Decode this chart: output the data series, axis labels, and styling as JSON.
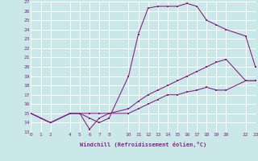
{
  "xlabel": "Windchill (Refroidissement éolien,°C)",
  "bg_color": "#cbe8e8",
  "grid_color": "#ffffff",
  "line_color": "#882288",
  "line1_x": [
    0,
    1,
    2,
    4,
    5,
    6,
    7,
    8,
    10,
    11,
    12,
    13,
    14,
    15,
    16,
    17,
    18,
    19,
    20,
    22,
    23
  ],
  "line1_y": [
    15,
    14.5,
    14,
    15,
    15,
    14.5,
    14,
    14.5,
    19,
    23.5,
    26.3,
    26.5,
    26.5,
    26.5,
    26.8,
    26.5,
    25,
    24.5,
    24,
    23.3,
    20
  ],
  "line2_x": [
    0,
    1,
    2,
    4,
    5,
    6,
    7,
    8,
    10,
    11,
    12,
    13,
    14,
    15,
    16,
    17,
    18,
    19,
    20,
    22,
    23
  ],
  "line2_y": [
    15,
    14.5,
    14,
    15,
    15,
    15,
    15,
    15,
    15.5,
    16.3,
    17,
    17.5,
    18,
    18.5,
    19,
    19.5,
    20,
    20.5,
    20.8,
    18.5,
    18.5
  ],
  "line3_x": [
    0,
    1,
    2,
    4,
    5,
    6,
    7,
    8,
    10,
    11,
    12,
    13,
    14,
    15,
    16,
    17,
    18,
    19,
    20,
    22,
    23
  ],
  "line3_y": [
    15,
    14.5,
    14,
    15,
    15,
    13.3,
    14.5,
    15,
    15,
    15.5,
    16,
    16.5,
    17,
    17,
    17.3,
    17.5,
    17.8,
    17.5,
    17.5,
    18.5,
    18.5
  ],
  "xlim": [
    0,
    23
  ],
  "ylim": [
    13,
    27
  ],
  "xticks": [
    0,
    1,
    2,
    4,
    5,
    6,
    7,
    8,
    10,
    11,
    12,
    13,
    14,
    15,
    16,
    17,
    18,
    19,
    20,
    22,
    23
  ],
  "yticks": [
    13,
    14,
    15,
    16,
    17,
    18,
    19,
    20,
    21,
    22,
    23,
    24,
    25,
    26,
    27
  ]
}
